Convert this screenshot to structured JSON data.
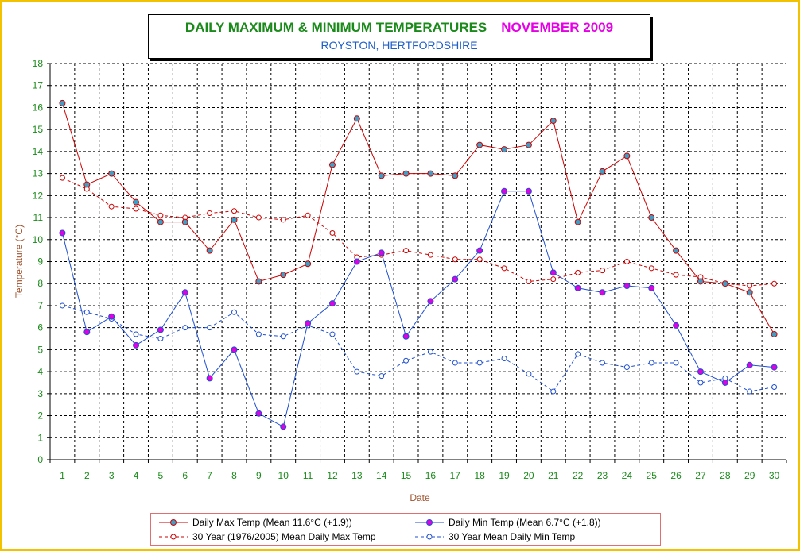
{
  "colors": {
    "frame": "#f2c200",
    "max": "#cc0000",
    "min": "#1f4fd0",
    "axis_text": "#1a8a1a",
    "axis_title": "#a0522d",
    "marker_max_fill": "#3aa0c8",
    "marker_min_fill": "#e000e0"
  },
  "title": {
    "main": "DAILY MAXIMUM &  MINIMUM  TEMPERATURES",
    "month": "NOVEMBER 2009",
    "subtitle": "ROYSTON, HERTFORDSHIRE"
  },
  "legend": {
    "max": "Daily Max Temp (Mean 11.6°C (+1.9))",
    "min": "Daily Min Temp (Mean 6.7°C (+1.8))",
    "mean_max": "30 Year (1976/2005) Mean Daily Max Temp",
    "mean_min": "30 Year Mean Daily Min Temp"
  },
  "chart_data": {
    "type": "line",
    "xlabel": "Date",
    "ylabel": "Temperature (°C)",
    "ylim": [
      0,
      18
    ],
    "grid": true,
    "legend_position": "bottom",
    "x": [
      1,
      2,
      3,
      4,
      5,
      6,
      7,
      8,
      9,
      10,
      11,
      12,
      13,
      14,
      15,
      16,
      17,
      18,
      19,
      20,
      21,
      22,
      23,
      24,
      25,
      26,
      27,
      28,
      29,
      30
    ],
    "yticks": [
      0,
      1,
      2,
      3,
      4,
      5,
      6,
      7,
      8,
      9,
      10,
      11,
      12,
      13,
      14,
      15,
      16,
      17,
      18
    ],
    "series": [
      {
        "name": "Daily Max Temp (Mean 11.6°C (+1.9))",
        "style": "solid",
        "values": [
          16.2,
          12.5,
          13.0,
          11.7,
          10.8,
          10.8,
          9.5,
          10.9,
          8.1,
          8.4,
          8.9,
          13.4,
          15.5,
          12.9,
          13.0,
          13.0,
          12.9,
          14.3,
          14.1,
          14.3,
          15.4,
          10.8,
          13.1,
          13.8,
          11.0,
          9.5,
          8.1,
          8.0,
          7.6,
          5.7
        ]
      },
      {
        "name": "Daily Min Temp (Mean 6.7°C (+1.8))",
        "style": "solid",
        "values": [
          10.3,
          5.8,
          6.5,
          5.2,
          5.9,
          7.6,
          3.7,
          5.0,
          2.1,
          1.5,
          6.2,
          7.1,
          9.0,
          9.4,
          5.6,
          7.2,
          8.2,
          9.5,
          12.2,
          12.2,
          8.5,
          7.8,
          7.6,
          7.9,
          7.8,
          6.1,
          4.0,
          3.5,
          4.3,
          4.2
        ]
      },
      {
        "name": "30 Year (1976/2005) Mean Daily Max Temp",
        "style": "dashed",
        "values": [
          12.8,
          12.3,
          11.5,
          11.4,
          11.1,
          11.0,
          11.2,
          11.3,
          11.0,
          10.9,
          11.1,
          10.3,
          9.2,
          9.3,
          9.5,
          9.3,
          9.1,
          9.1,
          8.7,
          8.1,
          8.2,
          8.5,
          8.6,
          9.0,
          8.7,
          8.4,
          8.3,
          8.0,
          7.9,
          8.0
        ]
      },
      {
        "name": "30 Year Mean Daily Min Temp",
        "style": "dashed",
        "values": [
          7.0,
          6.7,
          6.4,
          5.7,
          5.5,
          6.0,
          6.0,
          6.7,
          5.7,
          5.6,
          6.1,
          5.7,
          4.0,
          3.8,
          4.5,
          4.9,
          4.4,
          4.4,
          4.6,
          3.9,
          3.1,
          4.8,
          4.4,
          4.2,
          4.4,
          4.4,
          3.5,
          3.7,
          3.1,
          3.3
        ]
      }
    ]
  }
}
